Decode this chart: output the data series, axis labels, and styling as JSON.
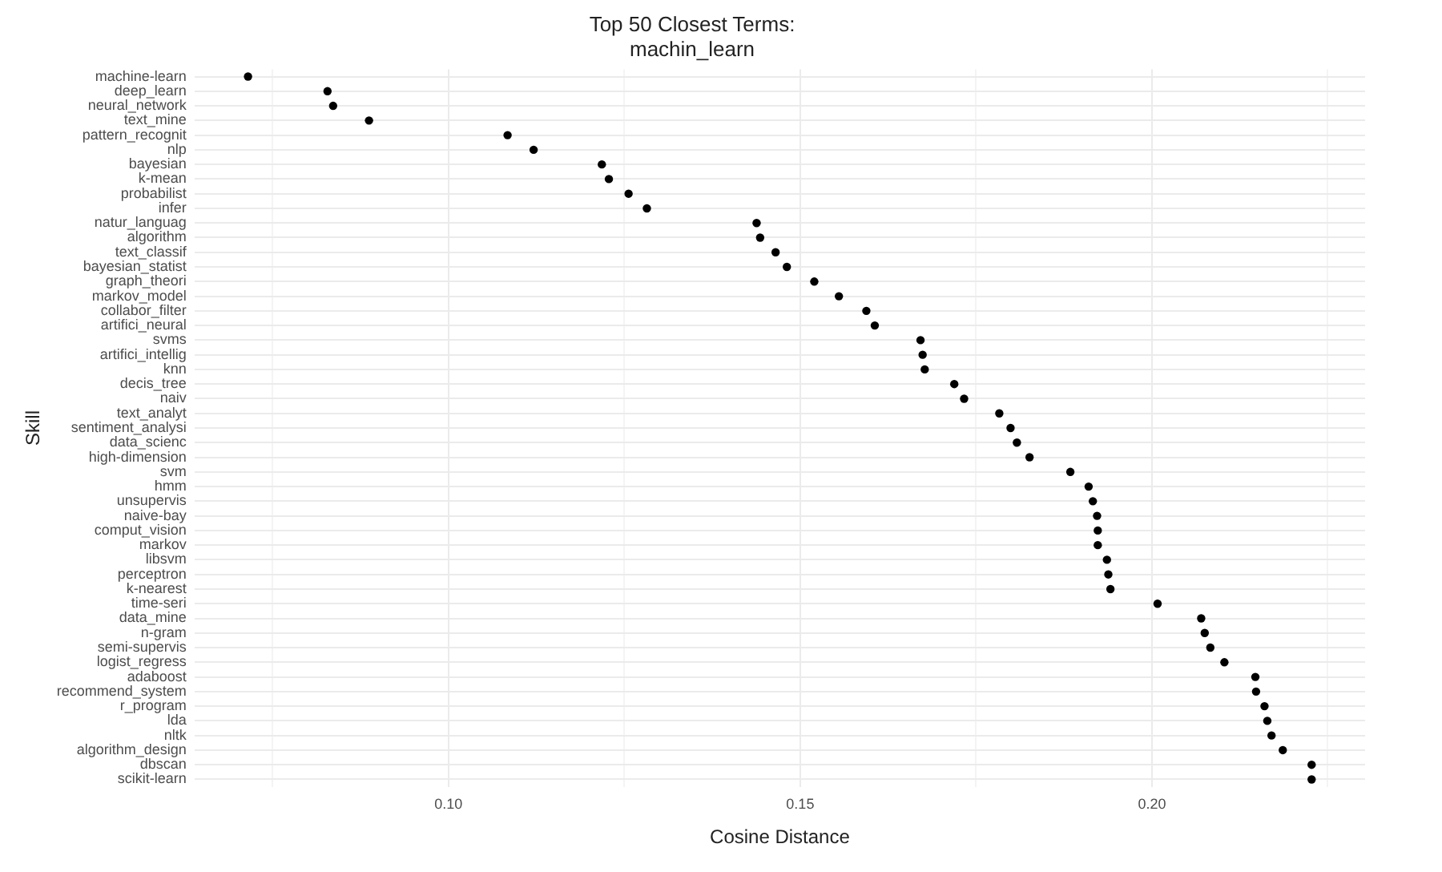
{
  "chart_data": {
    "type": "scatter",
    "orientation": "horizontal",
    "title": "Top 50 Closest Terms:\nmachin_learn",
    "xlabel": "Cosine Distance",
    "ylabel": "Skill",
    "categories": [
      "machine-learn",
      "deep_learn",
      "neural_network",
      "text_mine",
      "pattern_recognit",
      "nlp",
      "bayesian",
      "k-mean",
      "probabilist",
      "infer",
      "natur_languag",
      "algorithm",
      "text_classif",
      "bayesian_statist",
      "graph_theori",
      "markov_model",
      "collabor_filter",
      "artifici_neural",
      "svms",
      "artifici_intellig",
      "knn",
      "decis_tree",
      "naiv",
      "text_analyt",
      "sentiment_analysi",
      "data_scienc",
      "high-dimension",
      "svm",
      "hmm",
      "unsupervis",
      "naive-bay",
      "comput_vision",
      "markov",
      "libsvm",
      "perceptron",
      "k-nearest",
      "time-seri",
      "data_mine",
      "n-gram",
      "semi-supervis",
      "logist_regress",
      "adaboost",
      "recommend_system",
      "r_program",
      "lda",
      "nltk",
      "algorithm_design",
      "dbscan",
      "scikit-learn"
    ],
    "values": [
      0.0715,
      0.0828,
      0.0836,
      0.0887,
      0.1084,
      0.1121,
      0.1218,
      0.1228,
      0.1256,
      0.1282,
      0.1438,
      0.1443,
      0.1465,
      0.1481,
      0.152,
      0.1555,
      0.1594,
      0.1606,
      0.1671,
      0.1674,
      0.1677,
      0.1719,
      0.1733,
      0.1783,
      0.1799,
      0.1808,
      0.1826,
      0.1884,
      0.191,
      0.1916,
      0.1922,
      0.1923,
      0.1923,
      0.1936,
      0.1938,
      0.1941,
      0.2008,
      0.207,
      0.2075,
      0.2083,
      0.2103,
      0.2147,
      0.2148,
      0.216,
      0.2164,
      0.217,
      0.2186,
      0.2227,
      0.2227
    ],
    "color": "#000000",
    "marker": "circle",
    "grid": true,
    "xlim": [
      0.0639,
      0.2303
    ],
    "xticks": [
      {
        "value": 0.075,
        "label": null
      },
      {
        "value": 0.1,
        "label": "0.10"
      },
      {
        "value": 0.125,
        "label": null
      },
      {
        "value": 0.15,
        "label": "0.15"
      },
      {
        "value": 0.175,
        "label": null
      },
      {
        "value": 0.2,
        "label": "0.20"
      },
      {
        "value": 0.225,
        "label": null
      }
    ]
  }
}
